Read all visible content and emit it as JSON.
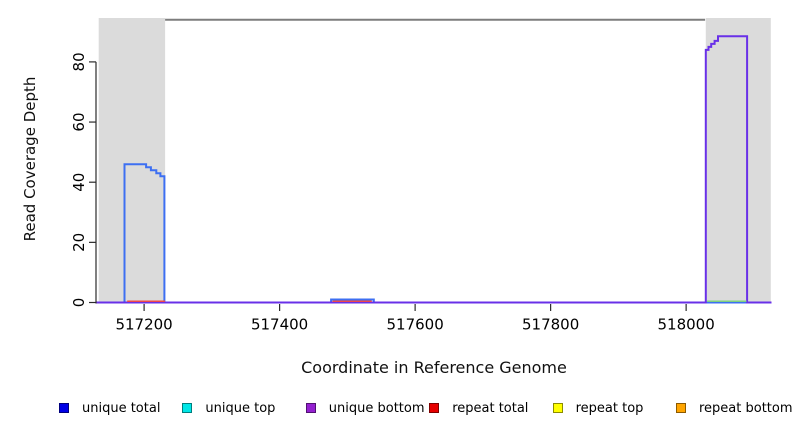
{
  "chart_data": {
    "type": "line",
    "title": "",
    "xlabel": "Coordinate in Reference Genome",
    "ylabel": "Read Coverage Depth",
    "xlim": [
      517129,
      518126
    ],
    "ylim": [
      0,
      94.6
    ],
    "x_ticks": [
      517200,
      517400,
      517600,
      517800,
      518000
    ],
    "y_ticks": [
      0,
      20,
      40,
      60,
      80
    ],
    "grid": false,
    "shaded_regions": [
      {
        "name": "left-gray-region",
        "x0": 517133,
        "x1": 517231,
        "color": "#DBDBDB"
      },
      {
        "name": "right-gray-region",
        "x0": 518029,
        "x1": 518125,
        "color": "#DBDBDB"
      }
    ],
    "contig_line": {
      "x0": 517231,
      "x1": 518028,
      "y": 94,
      "color": "#7D7D7D"
    },
    "series": [
      {
        "name": "unique total",
        "color": "#3D6FF2",
        "width": 2,
        "points": [
          [
            517129,
            0
          ],
          [
            517171,
            0
          ],
          [
            517171,
            46
          ],
          [
            517203,
            46
          ],
          [
            517203,
            45
          ],
          [
            517210,
            45
          ],
          [
            517210,
            44
          ],
          [
            517218,
            44
          ],
          [
            517218,
            43
          ],
          [
            517224,
            43
          ],
          [
            517224,
            42
          ],
          [
            517230,
            42
          ],
          [
            517230,
            0
          ],
          [
            517476,
            0
          ],
          [
            517476,
            1
          ],
          [
            517539,
            1
          ],
          [
            517539,
            0
          ],
          [
            518126,
            0
          ]
        ]
      },
      {
        "name": "unique bottom",
        "color": "#6930E8",
        "width": 2,
        "points": [
          [
            517129,
            0
          ],
          [
            518029,
            0
          ],
          [
            518029,
            84
          ],
          [
            518033,
            84
          ],
          [
            518033,
            85
          ],
          [
            518037,
            85
          ],
          [
            518037,
            86
          ],
          [
            518042,
            86
          ],
          [
            518042,
            87
          ],
          [
            518047,
            87
          ],
          [
            518047,
            88.5
          ],
          [
            518090,
            88.5
          ],
          [
            518090,
            0
          ],
          [
            518126,
            0
          ]
        ]
      }
    ],
    "baseline_segments": [
      {
        "name": "repeat total",
        "color": "#F04848",
        "y": 0,
        "x0": 517175,
        "x1": 517231
      },
      {
        "name": "repeat total",
        "color": "#F04848",
        "y": 0,
        "x0": 517478,
        "x1": 517536
      },
      {
        "name": "unique top / repeat top overlap",
        "color": "#7FD07F",
        "y": 0,
        "x0": 518031,
        "x1": 518089
      }
    ],
    "legend": {
      "position": "bottom",
      "items": [
        {
          "label": "unique total",
          "color": "#0000E6"
        },
        {
          "label": "unique top",
          "color": "#00E6E6"
        },
        {
          "label": "unique bottom",
          "color": "#9420D0"
        },
        {
          "label": "repeat total",
          "color": "#E60000"
        },
        {
          "label": "repeat top",
          "color": "#FFFF00"
        },
        {
          "label": "repeat bottom",
          "color": "#FFA500"
        }
      ]
    }
  }
}
